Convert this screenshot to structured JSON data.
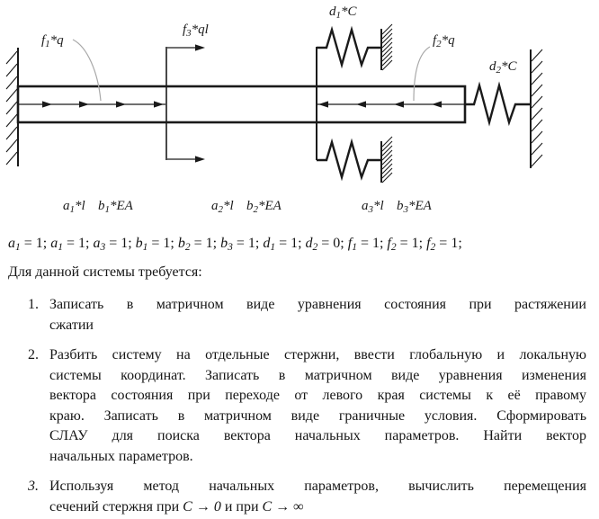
{
  "diagram": {
    "colors": {
      "ink": "#1a1a1a",
      "leader": "#a8a8a8",
      "background": "#ffffff"
    },
    "labels": {
      "f1": {
        "base": "f",
        "sub": "1",
        "suffix": "*q"
      },
      "f3": {
        "base": "f",
        "sub": "3",
        "suffix": "*ql"
      },
      "d1": {
        "base": "d",
        "sub": "1",
        "suffix": "*C"
      },
      "f2": {
        "base": "f",
        "sub": "2",
        "suffix": "*q"
      },
      "d2": {
        "base": "d",
        "sub": "2",
        "suffix": "*C"
      },
      "seg1_a": {
        "base": "a",
        "sub": "1",
        "suffix": "*l"
      },
      "seg1_b": {
        "base": "b",
        "sub": "1",
        "suffix": "*EA"
      },
      "seg2_a": {
        "base": "a",
        "sub": "2",
        "suffix": "*l"
      },
      "seg2_b": {
        "base": "b",
        "sub": "2",
        "suffix": "*EA"
      },
      "seg3_a": {
        "base": "a",
        "sub": "3",
        "suffix": "*l"
      },
      "seg3_b": {
        "base": "b",
        "sub": "3",
        "suffix": "*EA"
      }
    }
  },
  "params": {
    "equals": "=",
    "separator": ";",
    "items": [
      {
        "base": "a",
        "sub": "1",
        "value": "1"
      },
      {
        "base": "a",
        "sub": "1",
        "value": "1"
      },
      {
        "base": "a",
        "sub": "3",
        "value": "1"
      },
      {
        "base": "b",
        "sub": "1",
        "value": "1"
      },
      {
        "base": "b",
        "sub": "2",
        "value": "1"
      },
      {
        "base": "b",
        "sub": "3",
        "value": "1"
      },
      {
        "base": "d",
        "sub": "1",
        "value": "1"
      },
      {
        "base": "d",
        "sub": "2",
        "value": "0"
      },
      {
        "base": "f",
        "sub": "1",
        "value": "1"
      },
      {
        "base": "f",
        "sub": "2",
        "value": "1"
      },
      {
        "base": "f",
        "sub": "2",
        "value": "1"
      }
    ]
  },
  "intro": "Для данной системы требуется:",
  "tasks": {
    "items": [
      {
        "number": "1.",
        "number_italic": false,
        "lines": [
          {
            "stretch": true,
            "parts": [
              {
                "text": "Записать в матричном виде уравнения состояния при растяжении",
                "italic": false
              }
            ]
          },
          {
            "stretch": false,
            "parts": [
              {
                "text": "сжатии",
                "italic": false
              }
            ]
          }
        ]
      },
      {
        "number": "2.",
        "number_italic": false,
        "lines": [
          {
            "stretch": true,
            "parts": [
              {
                "text": "Разбить систему на отдельные стержни, ввести глобальную и локальную",
                "italic": false
              }
            ]
          },
          {
            "stretch": true,
            "parts": [
              {
                "text": "системы координат. Записать в матричном виде уравнения изменения",
                "italic": false
              }
            ]
          },
          {
            "stretch": true,
            "parts": [
              {
                "text": "вектора состояния при переходе от левого края системы к её правому",
                "italic": false
              }
            ]
          },
          {
            "stretch": true,
            "parts": [
              {
                "text": "краю. Записать в матричном виде граничные условия. Сформировать",
                "italic": false
              }
            ]
          },
          {
            "stretch": true,
            "parts": [
              {
                "text": "СЛАУ для поиска вектора начальных параметров. Найти вектор",
                "italic": false
              }
            ]
          },
          {
            "stretch": false,
            "parts": [
              {
                "text": "начальных параметров.",
                "italic": false
              }
            ]
          }
        ]
      },
      {
        "number": "3.",
        "number_italic": true,
        "lines": [
          {
            "stretch": true,
            "parts": [
              {
                "text": "Используя метод начальных параметров, вычислить перемещения",
                "italic": false
              }
            ]
          },
          {
            "stretch": false,
            "parts": [
              {
                "text": "сечений стержня при ",
                "italic": false
              },
              {
                "text": "C → 0",
                "italic": true
              },
              {
                "text": " и при ",
                "italic": false
              },
              {
                "text": "C → ∞",
                "italic": true
              }
            ]
          }
        ]
      }
    ]
  }
}
